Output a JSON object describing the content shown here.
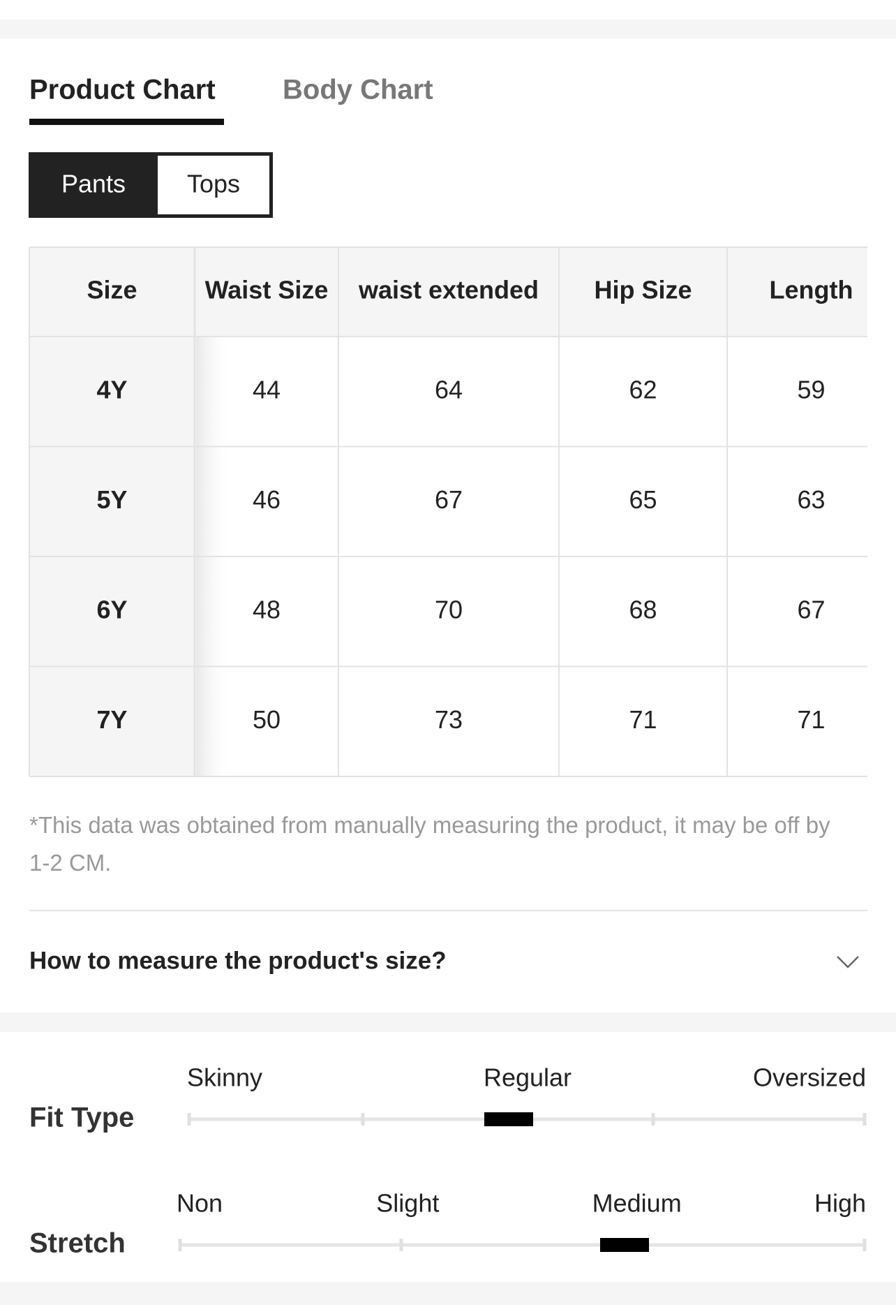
{
  "tabs": [
    "Product Chart",
    "Body Chart"
  ],
  "subtabs": [
    "Pants",
    "Tops"
  ],
  "table": {
    "header": [
      "Size",
      "Waist Size",
      "waist extended",
      "Hip Size",
      "Length"
    ],
    "rows": [
      [
        "4Y",
        "44",
        "64",
        "62",
        "59"
      ],
      [
        "5Y",
        "46",
        "67",
        "65",
        "63"
      ],
      [
        "6Y",
        "48",
        "70",
        "68",
        "67"
      ],
      [
        "7Y",
        "50",
        "73",
        "71",
        "71"
      ]
    ]
  },
  "note": "*This data was obtained from manually measuring the product, it may be off by 1-2 CM.",
  "accordion": {
    "title": "How to measure the product's size?"
  },
  "fit_type": {
    "label": "Fit Type",
    "scale": [
      "Skinny",
      "Regular",
      "Oversized"
    ]
  },
  "stretch": {
    "label": "Stretch",
    "scale": [
      "Non",
      "Slight",
      "Medium",
      "High"
    ]
  }
}
